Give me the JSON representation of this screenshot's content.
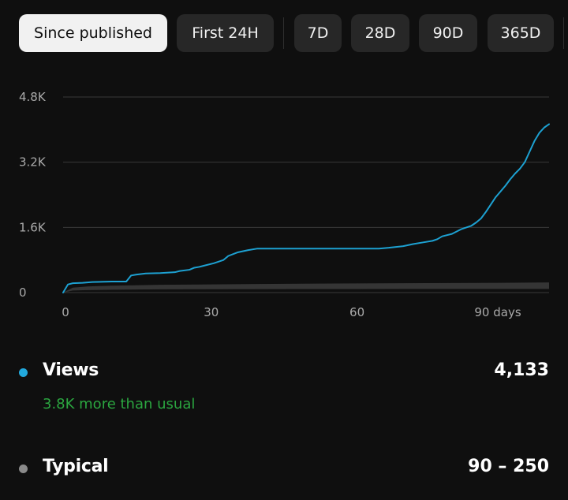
{
  "tabs": [
    {
      "label": "Since published",
      "active": true
    },
    {
      "label": "First 24H",
      "active": false
    },
    {
      "label": "7D",
      "active": false
    },
    {
      "label": "28D",
      "active": false
    },
    {
      "label": "90D",
      "active": false
    },
    {
      "label": "365D",
      "active": false
    }
  ],
  "chart_data": {
    "type": "line",
    "title": "",
    "xlabel": "",
    "ylabel": "",
    "xlim": [
      0,
      100
    ],
    "ylim": [
      0,
      4800
    ],
    "y_ticks": [
      "0",
      "1.6K",
      "3.2K",
      "4.8K"
    ],
    "x_ticks": [
      "0",
      "30",
      "60",
      "90 days"
    ],
    "grid": true,
    "series": [
      {
        "name": "Views",
        "color": "#1da1d2",
        "x": [
          0,
          1,
          2,
          4,
          6,
          10,
          13,
          14,
          15,
          17,
          20,
          23,
          24,
          26,
          27,
          28,
          29,
          31,
          33,
          34,
          36,
          38,
          40,
          45,
          50,
          55,
          60,
          65,
          67,
          70,
          72,
          74,
          76,
          77,
          78,
          80,
          82,
          84,
          85,
          86,
          87,
          88,
          89,
          90,
          91,
          92,
          93,
          94,
          95,
          96,
          97,
          98,
          99,
          100
        ],
        "y": [
          0,
          200,
          230,
          240,
          260,
          270,
          270,
          420,
          440,
          470,
          480,
          500,
          530,
          560,
          610,
          630,
          660,
          720,
          800,
          900,
          990,
          1040,
          1080,
          1080,
          1080,
          1080,
          1080,
          1080,
          1100,
          1140,
          1190,
          1230,
          1270,
          1310,
          1380,
          1440,
          1560,
          1640,
          1720,
          1820,
          1980,
          2160,
          2340,
          2480,
          2620,
          2780,
          2920,
          3040,
          3200,
          3460,
          3720,
          3920,
          4050,
          4133
        ]
      }
    ],
    "typical_band": {
      "name": "Typical",
      "color": "#3a3a3a",
      "x": [
        0,
        2,
        5,
        10,
        20,
        40,
        60,
        80,
        90,
        100
      ],
      "lower": [
        0,
        50,
        60,
        70,
        80,
        85,
        88,
        90,
        90,
        90
      ],
      "upper": [
        0,
        120,
        150,
        170,
        190,
        210,
        225,
        235,
        240,
        250
      ]
    }
  },
  "legend": {
    "views": {
      "label": "Views",
      "value": "4,133",
      "subtext": "3.8K more than usual",
      "color": "#22a9dd"
    },
    "typical": {
      "label": "Typical",
      "value": "90 – 250",
      "color": "#8a8a8a"
    }
  }
}
